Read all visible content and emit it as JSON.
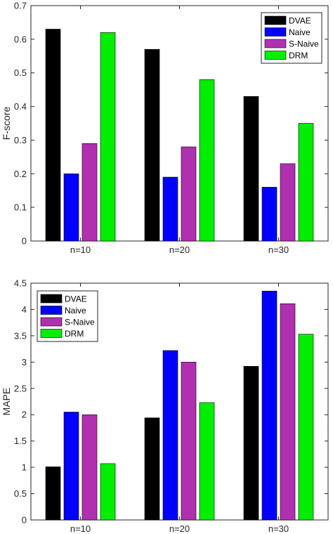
{
  "chart_data": [
    {
      "type": "bar",
      "categories": [
        "n=10",
        "n=20",
        "n=30"
      ],
      "series": [
        {
          "name": "DVAE",
          "color": "#000000",
          "values": [
            0.63,
            0.57,
            0.43
          ]
        },
        {
          "name": "Naive",
          "color": "#0000ff",
          "values": [
            0.2,
            0.19,
            0.16
          ]
        },
        {
          "name": "S-Naive",
          "color": "#b030b0",
          "values": [
            0.29,
            0.28,
            0.23
          ]
        },
        {
          "name": "DRM",
          "color": "#00ee00",
          "values": [
            0.62,
            0.48,
            0.35
          ]
        }
      ],
      "ylabel": "F-score",
      "ylim": [
        0,
        0.7
      ],
      "yticks": [
        "0",
        "0.1",
        "0.2",
        "0.3",
        "0.4",
        "0.5",
        "0.6",
        "0.7"
      ],
      "legend_position": "top-right",
      "grid": false
    },
    {
      "type": "bar",
      "categories": [
        "n=10",
        "n=20",
        "n=30"
      ],
      "series": [
        {
          "name": "DVAE",
          "color": "#000000",
          "values": [
            1.01,
            1.94,
            2.92
          ]
        },
        {
          "name": "Naive",
          "color": "#0000ff",
          "values": [
            2.05,
            3.22,
            4.35
          ]
        },
        {
          "name": "S-Naive",
          "color": "#b030b0",
          "values": [
            2.0,
            3.0,
            4.11
          ]
        },
        {
          "name": "DRM",
          "color": "#00ee00",
          "values": [
            1.07,
            2.23,
            3.53
          ]
        }
      ],
      "ylabel": "MAPE",
      "ylim": [
        0,
        4.5
      ],
      "yticks": [
        "0",
        "0.5",
        "1",
        "1.5",
        "2",
        "2.5",
        "3",
        "3.5",
        "4",
        "4.5"
      ],
      "legend_position": "top-left",
      "grid": false
    }
  ]
}
